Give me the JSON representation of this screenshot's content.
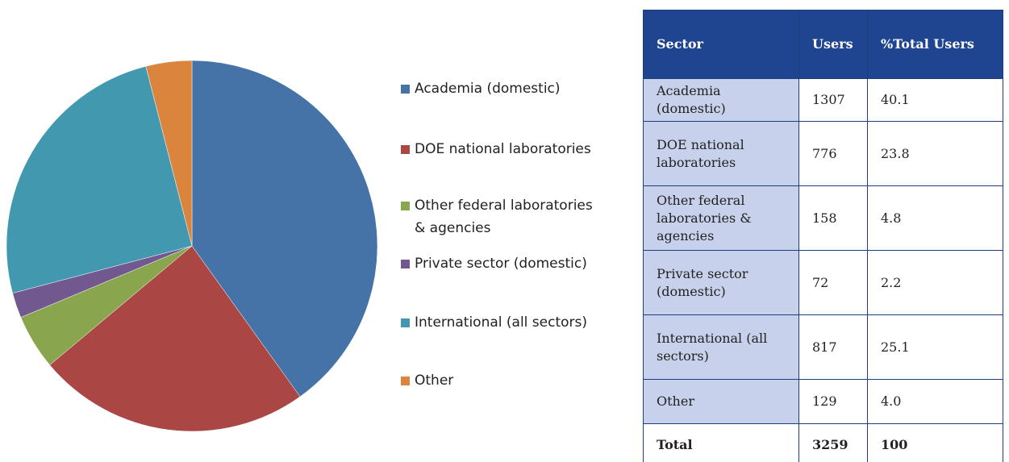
{
  "chart_data": {
    "type": "pie",
    "categories": [
      "Academia (domestic)",
      "DOE national laboratories",
      "Other federal laboratories & agencies",
      "Private sector (domestic)",
      "International (all sectors)",
      "Other"
    ],
    "values": [
      40.1,
      23.8,
      4.8,
      2.2,
      25.1,
      4.0
    ],
    "colors": [
      "#4572a7",
      "#aa4643",
      "#89a54e",
      "#71588f",
      "#4198af",
      "#db843d"
    ]
  },
  "table": {
    "header": [
      "Sector",
      "Users",
      "%Total Users"
    ],
    "rows": [
      [
        "Academia (domestic)",
        "1307",
        "40.1"
      ],
      [
        "DOE national laboratories",
        "776",
        "23.8"
      ],
      [
        "Other federal laboratories & agencies",
        "158",
        "4.8"
      ],
      [
        "Private sector (domestic)",
        "72",
        "2.2"
      ],
      [
        "International (all sectors)",
        "817",
        "25.1"
      ],
      [
        "Other",
        "129",
        "4.0"
      ],
      [
        "Total",
        "3259",
        "100"
      ]
    ]
  }
}
